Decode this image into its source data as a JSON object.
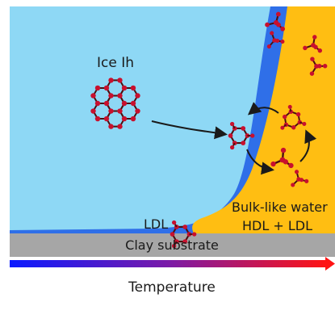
{
  "labels": {
    "ice": "Ice Ih",
    "ldl": "LDL",
    "bulk_line1": "Bulk-like water",
    "bulk_line2": "HDL + LDL",
    "substrate": "Clay substrate",
    "temperature": "Temperature"
  },
  "colors": {
    "ice_region": "#8ed8f5",
    "ldl_layer": "#2f6fe8",
    "bulk_water": "#ffbe12",
    "substrate": "#a6a6a6",
    "oxygen_atom": "#c8102e",
    "bond": "#4a1010",
    "arrow": "#1a1a1a",
    "gradient_cold": "#0a1aff",
    "gradient_hot": "#ff1414"
  },
  "icons": {
    "ice_crystal": "hexagonal-ice-lattice-icon",
    "water_molecule": "tetrahedral-water-cluster-icon",
    "temperature_arrow": "temperature-gradient-arrow-icon"
  }
}
